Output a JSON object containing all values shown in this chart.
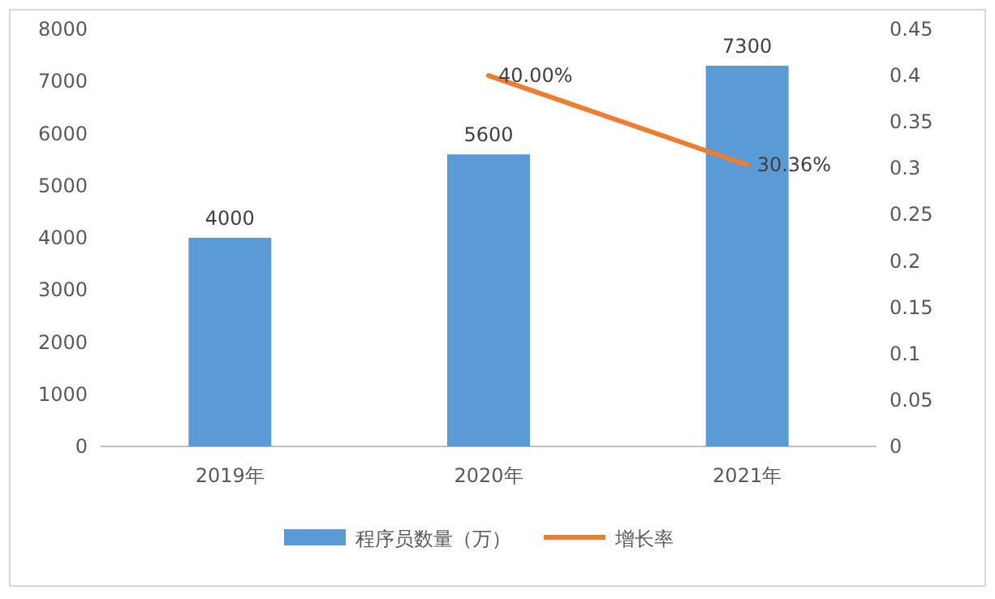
{
  "chart_data": {
    "type": "bar",
    "categories": [
      "2019年",
      "2020年",
      "2021年"
    ],
    "series": [
      {
        "name": "程序员数量（万）",
        "color": "#5b9bd5",
        "values": [
          4000,
          5600,
          7300
        ],
        "value_labels": [
          "4000",
          "5600",
          "7300"
        ]
      },
      {
        "name": "增长率",
        "type": "line",
        "axis": "y2",
        "color": "#ed7d31",
        "values": [
          null,
          0.4,
          0.3036
        ],
        "value_labels": [
          null,
          "40.00%",
          "30.36%"
        ]
      }
    ],
    "ylim": [
      0,
      8000
    ],
    "yticks": [
      0,
      1000,
      2000,
      3000,
      4000,
      5000,
      6000,
      7000,
      8000
    ],
    "y2lim": [
      0,
      0.45
    ],
    "y2ticks": [
      0,
      0.05,
      0.1,
      0.15,
      0.2,
      0.25,
      0.3,
      0.35,
      0.4,
      0.45
    ],
    "legend": "bottom",
    "grid": false
  }
}
